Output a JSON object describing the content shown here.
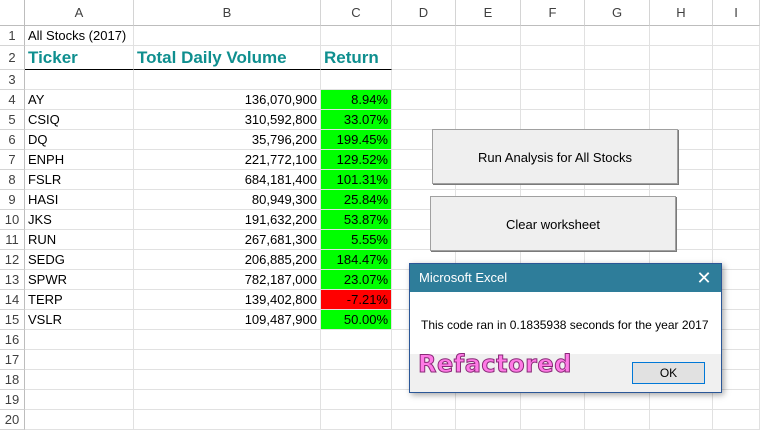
{
  "columns": [
    "A",
    "B",
    "C",
    "D",
    "E",
    "F",
    "G",
    "H",
    "I"
  ],
  "rows": [
    "1",
    "2",
    "3",
    "4",
    "5",
    "6",
    "7",
    "8",
    "9",
    "10",
    "11",
    "12",
    "13",
    "14",
    "15",
    "16",
    "17",
    "18",
    "19",
    "20"
  ],
  "title": "All Stocks (2017)",
  "headers": {
    "ticker": "Ticker",
    "volume": "Total Daily Volume",
    "return": "Return"
  },
  "data": [
    {
      "ticker": "AY",
      "volume": "136,070,900",
      "return": "8.94%",
      "status": "positive"
    },
    {
      "ticker": "CSIQ",
      "volume": "310,592,800",
      "return": "33.07%",
      "status": "positive"
    },
    {
      "ticker": "DQ",
      "volume": "35,796,200",
      "return": "199.45%",
      "status": "positive"
    },
    {
      "ticker": "ENPH",
      "volume": "221,772,100",
      "return": "129.52%",
      "status": "positive"
    },
    {
      "ticker": "FSLR",
      "volume": "684,181,400",
      "return": "101.31%",
      "status": "positive"
    },
    {
      "ticker": "HASI",
      "volume": "80,949,300",
      "return": "25.84%",
      "status": "positive"
    },
    {
      "ticker": "JKS",
      "volume": "191,632,200",
      "return": "53.87%",
      "status": "positive"
    },
    {
      "ticker": "RUN",
      "volume": "267,681,300",
      "return": "5.55%",
      "status": "positive"
    },
    {
      "ticker": "SEDG",
      "volume": "206,885,200",
      "return": "184.47%",
      "status": "positive"
    },
    {
      "ticker": "SPWR",
      "volume": "782,187,000",
      "return": "23.07%",
      "status": "positive"
    },
    {
      "ticker": "TERP",
      "volume": "139,402,800",
      "return": "-7.21%",
      "status": "negative"
    },
    {
      "ticker": "VSLR",
      "volume": "109,487,900",
      "return": "50.00%",
      "status": "positive"
    }
  ],
  "buttons": {
    "run": "Run Analysis for All Stocks",
    "clear": "Clear worksheet"
  },
  "dialog": {
    "title": "Microsoft Excel",
    "message": "This code ran in 0.1835938 seconds for the year 2017",
    "ok": "OK",
    "close": "✕"
  },
  "overlay_text": "Refactored",
  "colors": {
    "header_text": "#0f8f8f",
    "positive": "#00ff00",
    "negative": "#ff0000",
    "title_bar": "#2e7d9a"
  }
}
